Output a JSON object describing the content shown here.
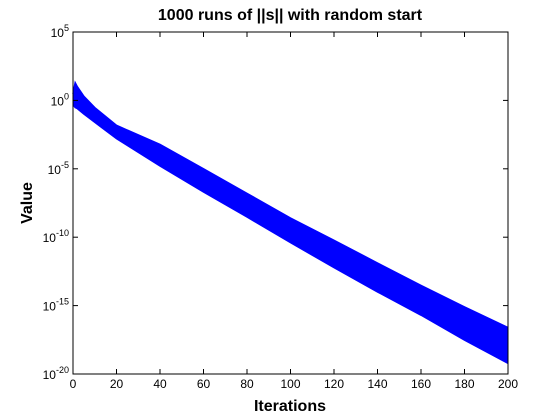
{
  "chart_data": {
    "type": "band",
    "title": "1000 runs of ||s|| with random start",
    "xlabel": "Iterations",
    "ylabel": "Value",
    "x": [
      0,
      1,
      2,
      5,
      10,
      20,
      40,
      60,
      80,
      100,
      120,
      140,
      160,
      180,
      200
    ],
    "series": [
      {
        "color": "#0000ff",
        "values": [
          3,
          20,
          10,
          2,
          0.3,
          0.015,
          0.0006,
          1e-05,
          1.6e-07,
          2.5e-09,
          6e-11,
          1.3e-12,
          3e-14,
          8e-16,
          2.5e-17
        ]
      },
      {
        "color": "#0000ff",
        "values": [
          0.5,
          0.3,
          0.25,
          0.1,
          0.025,
          0.0016,
          1.6e-05,
          2e-07,
          3e-09,
          4e-11,
          6e-13,
          1e-14,
          2e-16,
          3e-18,
          6e-20
        ]
      }
    ],
    "xlim": [
      0,
      200
    ],
    "xticks": [
      0,
      20,
      40,
      60,
      80,
      100,
      120,
      140,
      160,
      180,
      200
    ],
    "ylim": [
      1e-20,
      100000
    ],
    "log_y": true,
    "yticks": [
      {
        "value": 1e-20,
        "label": "10",
        "exponent": "-20"
      },
      {
        "value": 1e-15,
        "label": "10",
        "exponent": "-15"
      },
      {
        "value": 1e-10,
        "label": "10",
        "exponent": "-10"
      },
      {
        "value": 1e-05,
        "label": "10",
        "exponent": "-5"
      },
      {
        "value": 1,
        "label": "10",
        "exponent": "0"
      },
      {
        "value": 100000,
        "label": "10",
        "exponent": "5"
      }
    ]
  }
}
